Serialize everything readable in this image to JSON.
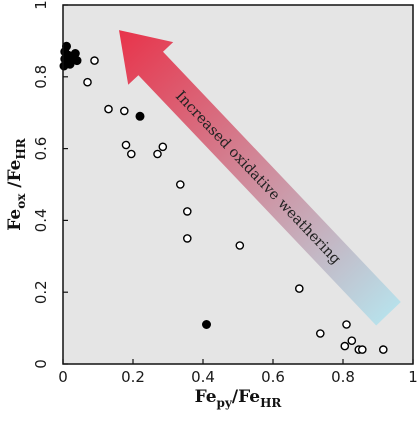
{
  "chart_data": {
    "type": "scatter",
    "title": "",
    "xlabel": {
      "main": "Fe",
      "sub1": "py",
      "sep": "/Fe",
      "sub2": "HR"
    },
    "ylabel": {
      "main": "Fe",
      "sub1": "ox",
      "sep": " /Fe",
      "sub2": "HR"
    },
    "xlim": [
      0,
      1
    ],
    "ylim": [
      0,
      1
    ],
    "xticks": [
      {
        "value": 0,
        "label": "0"
      },
      {
        "value": 0.2,
        "label": "0.2"
      },
      {
        "value": 0.4,
        "label": "0.4"
      },
      {
        "value": 0.6,
        "label": "0.6"
      },
      {
        "value": 0.8,
        "label": "0.8"
      },
      {
        "value": 1,
        "label": "1"
      }
    ],
    "yticks": [
      {
        "value": 0,
        "label": "0"
      },
      {
        "value": 0.2,
        "label": "0.2"
      },
      {
        "value": 0.4,
        "label": "0.4"
      },
      {
        "value": 0.6,
        "label": "0.6"
      },
      {
        "value": 0.8,
        "label": "0.8"
      },
      {
        "value": 1,
        "label": "1"
      }
    ],
    "grid": false,
    "background": "#e5e5e5",
    "series": [
      {
        "marker": "filled-circle",
        "color": "#000000",
        "points": [
          {
            "x": 0.005,
            "y": 0.87
          },
          {
            "x": 0.01,
            "y": 0.885
          },
          {
            "x": 0.005,
            "y": 0.85
          },
          {
            "x": 0.01,
            "y": 0.84
          },
          {
            "x": 0.015,
            "y": 0.86
          },
          {
            "x": 0.02,
            "y": 0.835
          },
          {
            "x": 0.025,
            "y": 0.845
          },
          {
            "x": 0.035,
            "y": 0.865
          },
          {
            "x": 0.04,
            "y": 0.845
          },
          {
            "x": 0.003,
            "y": 0.83
          },
          {
            "x": 0.22,
            "y": 0.69
          },
          {
            "x": 0.41,
            "y": 0.11
          }
        ]
      },
      {
        "marker": "open-circle",
        "color": "#000000",
        "points": [
          {
            "x": 0.09,
            "y": 0.845
          },
          {
            "x": 0.07,
            "y": 0.785
          },
          {
            "x": 0.13,
            "y": 0.71
          },
          {
            "x": 0.175,
            "y": 0.705
          },
          {
            "x": 0.18,
            "y": 0.61
          },
          {
            "x": 0.195,
            "y": 0.585
          },
          {
            "x": 0.27,
            "y": 0.585
          },
          {
            "x": 0.285,
            "y": 0.605
          },
          {
            "x": 0.335,
            "y": 0.5
          },
          {
            "x": 0.355,
            "y": 0.425
          },
          {
            "x": 0.355,
            "y": 0.35
          },
          {
            "x": 0.505,
            "y": 0.33
          },
          {
            "x": 0.675,
            "y": 0.21
          },
          {
            "x": 0.735,
            "y": 0.085
          },
          {
            "x": 0.81,
            "y": 0.11
          },
          {
            "x": 0.805,
            "y": 0.05
          },
          {
            "x": 0.825,
            "y": 0.065
          },
          {
            "x": 0.845,
            "y": 0.04
          },
          {
            "x": 0.855,
            "y": 0.04
          },
          {
            "x": 0.915,
            "y": 0.04
          }
        ]
      }
    ],
    "annotation": {
      "text": "Increased oxidative weathering",
      "start": {
        "x": 0.93,
        "y": 0.14
      },
      "end": {
        "x": 0.16,
        "y": 0.93
      },
      "color_head": "#e8334a",
      "color_tail": "#b8e0ea"
    }
  }
}
